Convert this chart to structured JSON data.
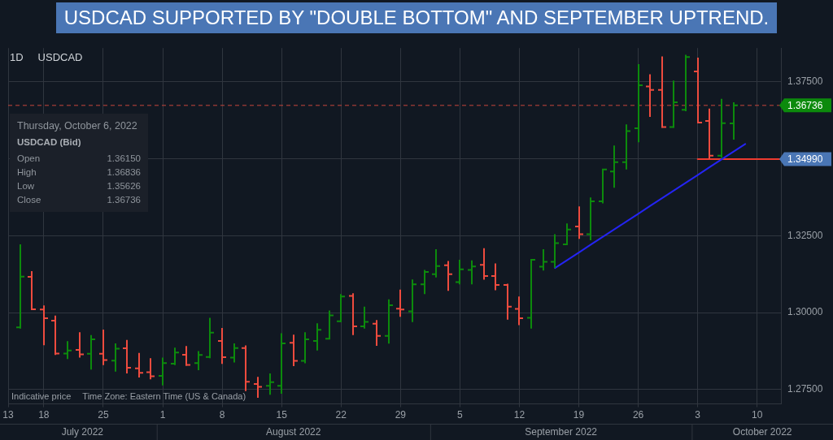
{
  "chart_data": {
    "type": "candlestick",
    "title": "USDCAD SUPPORTED BY \"DOUBLE BOTTOM\" AND SEPTEMBER UPTREND.",
    "annotations": [
      "1D",
      "USDCAD",
      "Thursday, October 6, 2022",
      "USDCAD (Bid)",
      "Open",
      "1.36150",
      "High",
      "1.36836",
      "Low",
      "1.35626",
      "Close",
      "1.36736",
      "Indicative price",
      "Time Zone: Eastern Time (US & Canada)",
      "July 2022",
      "August 2022",
      "September 2022",
      "October 2022"
    ],
    "categories": [
      "13",
      null,
      null,
      "18",
      null,
      null,
      null,
      null,
      "25",
      null,
      null,
      null,
      null,
      "1",
      null,
      null,
      null,
      null,
      "8",
      null,
      null,
      null,
      null,
      "15",
      null,
      null,
      null,
      null,
      "22",
      null,
      null,
      null,
      null,
      "29",
      null,
      null,
      null,
      null,
      "5",
      null,
      null,
      null,
      null,
      "12",
      null,
      null,
      null,
      null,
      "19",
      null,
      null,
      null,
      null,
      "26",
      null,
      null,
      null,
      null,
      "3",
      null,
      null,
      null,
      null,
      "10",
      null,
      null
    ],
    "ohlc": [
      null,
      [
        1.2952,
        1.3222,
        1.2948,
        1.3117
      ],
      [
        1.3116,
        1.3135,
        1.301,
        1.3011
      ],
      [
        1.301,
        1.3023,
        1.2894,
        1.2982
      ],
      [
        1.2974,
        1.299,
        1.2862,
        1.2867
      ],
      [
        1.2867,
        1.2907,
        1.2849,
        1.2877
      ],
      [
        1.2879,
        1.2936,
        1.2854,
        1.2864
      ],
      [
        1.2866,
        1.2927,
        1.2815,
        1.2913
      ],
      [
        1.2866,
        1.2945,
        1.2829,
        1.2846
      ],
      [
        1.2844,
        1.29,
        1.2808,
        1.2883
      ],
      [
        1.2884,
        1.2911,
        1.2802,
        1.2821
      ],
      [
        1.2819,
        1.2869,
        1.2789,
        1.2804
      ],
      [
        1.2806,
        1.2852,
        1.2783,
        1.2793
      ],
      [
        1.2794,
        1.2854,
        1.2763,
        1.2836
      ],
      [
        1.2834,
        1.2886,
        1.2829,
        1.287
      ],
      [
        1.2863,
        1.2891,
        1.2827,
        1.283
      ],
      [
        1.2836,
        1.2875,
        1.2813,
        1.2862
      ],
      [
        1.2856,
        1.2983,
        1.2852,
        1.2935
      ],
      [
        1.2908,
        1.295,
        1.2833,
        1.2855
      ],
      [
        1.2854,
        1.29,
        1.2838,
        1.2885
      ],
      [
        1.2885,
        1.2893,
        1.2745,
        1.2775
      ],
      [
        1.2768,
        1.2791,
        1.2723,
        1.2759
      ],
      [
        1.2762,
        1.2802,
        1.2733,
        1.2774
      ],
      [
        1.2762,
        1.2933,
        1.2736,
        1.29
      ],
      [
        1.2902,
        1.2928,
        1.2826,
        1.2843
      ],
      [
        1.2843,
        1.2936,
        1.2835,
        1.2913
      ],
      [
        1.2908,
        1.2965,
        1.2877,
        1.2944
      ],
      [
        1.2915,
        1.3007,
        1.2913,
        1.2991
      ],
      [
        1.2972,
        1.306,
        1.2969,
        1.3052
      ],
      [
        1.3054,
        1.3063,
        1.2927,
        1.2955
      ],
      [
        1.2955,
        1.3019,
        1.2948,
        1.297
      ],
      [
        1.2964,
        1.2976,
        1.2892,
        1.2924
      ],
      [
        1.2924,
        1.3043,
        1.2899,
        1.3024
      ],
      [
        1.3013,
        1.3075,
        1.2986,
        1.301
      ],
      [
        1.3004,
        1.3108,
        1.2969,
        1.3092
      ],
      [
        1.3092,
        1.3139,
        1.306,
        1.3132
      ],
      [
        1.3125,
        1.3206,
        1.3114,
        1.3151
      ],
      [
        1.3154,
        1.3168,
        1.3071,
        1.3125
      ],
      [
        1.3099,
        1.3172,
        1.3092,
        1.3141
      ],
      [
        1.3139,
        1.317,
        1.3092,
        1.315
      ],
      [
        1.3155,
        1.3209,
        1.3107,
        1.3119
      ],
      [
        1.3119,
        1.316,
        1.3073,
        1.309
      ],
      [
        1.309,
        1.3094,
        1.2977,
        1.3019
      ],
      [
        1.3012,
        1.3052,
        1.2959,
        1.2982
      ],
      [
        1.2983,
        1.3174,
        1.2948,
        1.3172
      ],
      [
        1.3149,
        1.3206,
        1.3137,
        1.3165
      ],
      [
        1.3165,
        1.3255,
        1.3145,
        1.3226
      ],
      [
        1.3222,
        1.329,
        1.3219,
        1.327
      ],
      [
        1.328,
        1.3345,
        1.324,
        1.3255
      ],
      [
        1.3255,
        1.3374,
        1.3235,
        1.3362
      ],
      [
        1.3362,
        1.3467,
        1.3355,
        1.3465
      ],
      [
        1.3459,
        1.3543,
        1.3406,
        1.3489
      ],
      [
        1.3489,
        1.3612,
        1.3465,
        1.359
      ],
      [
        1.3599,
        1.3808,
        1.3554,
        1.3739
      ],
      [
        1.3735,
        1.3775,
        1.3636,
        1.3724
      ],
      [
        1.3724,
        1.3833,
        1.3601,
        1.3603
      ],
      [
        1.3603,
        1.3754,
        1.3601,
        1.3684
      ],
      [
        1.3659,
        1.3838,
        1.3655,
        1.3831
      ],
      [
        1.3784,
        1.3829,
        1.3616,
        1.3618
      ],
      [
        1.3623,
        1.3663,
        1.3499,
        1.351
      ],
      [
        1.351,
        1.3695,
        1.3503,
        1.3616
      ],
      [
        1.3615,
        1.36836,
        1.35626,
        1.36736
      ],
      null,
      null,
      null,
      null
    ],
    "colors": [
      null,
      "#0c8a0c",
      "#ee4b3e",
      "#ee4b3e",
      "#ee4b3e",
      "#0c8a0c",
      "#ee4b3e",
      "#0c8a0c",
      "#ee4b3e",
      "#0c8a0c",
      "#ee4b3e",
      "#ee4b3e",
      "#ee4b3e",
      "#0c8a0c",
      "#0c8a0c",
      "#ee4b3e",
      "#0c8a0c",
      "#0c8a0c",
      "#ee4b3e",
      "#0c8a0c",
      "#ee4b3e",
      "#ee4b3e",
      "#0c8a0c",
      "#0c8a0c",
      "#ee4b3e",
      "#0c8a0c",
      "#0c8a0c",
      "#0c8a0c",
      "#0c8a0c",
      "#ee4b3e",
      "#0c8a0c",
      "#ee4b3e",
      "#0c8a0c",
      "#ee4b3e",
      "#0c8a0c",
      "#0c8a0c",
      "#0c8a0c",
      "#ee4b3e",
      "#0c8a0c",
      "#0c8a0c",
      "#ee4b3e",
      "#ee4b3e",
      "#ee4b3e",
      "#ee4b3e",
      "#0c8a0c",
      "#0c8a0c",
      "#0c8a0c",
      "#0c8a0c",
      "#ee4b3e",
      "#0c8a0c",
      "#0c8a0c",
      "#0c8a0c",
      "#0c8a0c",
      "#0c8a0c",
      "#ee4b3e",
      "#ee4b3e",
      "#0c8a0c",
      "#0c8a0c",
      "#ee4b3e",
      "#ee4b3e",
      "#0c8a0c",
      "#0c8a0c",
      null,
      null,
      null,
      null
    ],
    "series": [
      {
        "type": "line",
        "color": "#2424f2",
        "values": [
          null,
          null,
          null,
          null,
          null,
          null,
          null,
          null,
          null,
          null,
          null,
          null,
          null,
          null,
          null,
          null,
          null,
          null,
          null,
          null,
          null,
          null,
          null,
          null,
          null,
          null,
          null,
          null,
          null,
          null,
          null,
          null,
          null,
          null,
          null,
          null,
          null,
          null,
          null,
          null,
          null,
          null,
          null,
          null,
          null,
          null,
          1.3145,
          1.317,
          1.3195,
          1.3221,
          1.3246,
          1.3271,
          1.3296,
          1.3321,
          1.3347,
          1.3372,
          1.3397,
          1.3422,
          1.3447,
          1.3473,
          1.3498,
          1.3523,
          1.3548,
          null,
          null,
          null
        ]
      },
      {
        "type": "line",
        "color": "#ee3b30",
        "values": [
          null,
          null,
          null,
          null,
          null,
          null,
          null,
          null,
          null,
          null,
          null,
          null,
          null,
          null,
          null,
          null,
          null,
          null,
          null,
          null,
          null,
          null,
          null,
          null,
          null,
          null,
          null,
          null,
          null,
          null,
          null,
          null,
          null,
          null,
          null,
          null,
          null,
          null,
          null,
          null,
          null,
          null,
          null,
          null,
          null,
          null,
          null,
          null,
          null,
          null,
          null,
          null,
          null,
          null,
          null,
          null,
          null,
          null,
          1.3499,
          1.3499,
          1.3499,
          1.3499,
          1.3499,
          1.3499,
          1.3499,
          1.3499
        ],
        "value_labels": [
          null,
          null,
          null,
          null,
          null,
          null,
          null,
          null,
          null,
          null,
          null,
          null,
          null,
          null,
          null,
          null,
          null,
          null,
          null,
          null,
          null,
          null,
          null,
          null,
          null,
          null,
          null,
          null,
          null,
          null,
          null,
          null,
          null,
          null,
          null,
          null,
          null,
          null,
          null,
          null,
          null,
          null,
          null,
          null,
          null,
          null,
          null,
          null,
          null,
          null,
          null,
          null,
          null,
          null,
          null,
          null,
          null,
          null,
          null,
          null,
          null,
          null,
          null,
          null,
          null,
          "1.34990"
        ]
      }
    ],
    "ylim": [
      1.2703,
      1.386
    ],
    "yticks": [
      {
        "value": 1.275,
        "label": "1.27500"
      },
      {
        "value": 1.3,
        "label": "1.30000"
      },
      {
        "value": 1.325,
        "label": "1.32500"
      },
      {
        "value": 1.35,
        "label": null
      },
      {
        "value": 1.375,
        "label": "1.37500"
      }
    ],
    "grid": true,
    "ref_lines": [
      {
        "axis": "y",
        "value": 1.36736,
        "label": "1.36736",
        "color": "#c8463d",
        "line_style": "dashed"
      }
    ]
  }
}
